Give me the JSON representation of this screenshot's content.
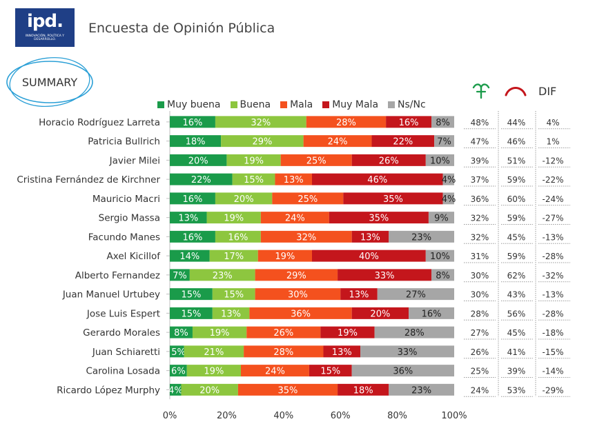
{
  "header": {
    "logo_text": "ipd.",
    "logo_tagline": "INNOVACIÓN, POLÍTICA Y DESARROLLO.",
    "title": "Encuesta de Opinión Pública",
    "summary_label": "SUMMARY"
  },
  "legend": [
    {
      "label": "Muy buena",
      "color": "#1a9b4a"
    },
    {
      "label": "Buena",
      "color": "#8dc63f"
    },
    {
      "label": "Mala",
      "color": "#f4511e"
    },
    {
      "label": "Muy Mala",
      "color": "#c4161c"
    },
    {
      "label": "Ns/Nc",
      "color": "#a6a6a6"
    }
  ],
  "table_headers": {
    "positive_icon": "green-hand-sign-icon",
    "negative_icon": "red-arc-icon",
    "dif_label": "DIF"
  },
  "chart_data": {
    "type": "bar",
    "orientation": "horizontal",
    "stacked": true,
    "categories": [
      "Horacio Rodríguez Larreta",
      "Patricia Bullrich",
      "Javier Milei",
      "Cristina Fernández de Kirchner",
      "Mauricio Macri",
      "Sergio Massa",
      "Facundo Manes",
      "Axel Kicillof",
      "Alberto Fernandez",
      "Juan Manuel Urtubey",
      "Jose Luis Espert",
      "Gerardo Morales",
      "Juan Schiaretti",
      "Carolina Losada",
      "Ricardo López Murphy"
    ],
    "series": [
      {
        "name": "Muy buena",
        "color": "#1a9b4a",
        "values": [
          16,
          18,
          20,
          22,
          16,
          13,
          16,
          14,
          7,
          15,
          15,
          8,
          5,
          6,
          4
        ]
      },
      {
        "name": "Buena",
        "color": "#8dc63f",
        "values": [
          32,
          29,
          19,
          15,
          20,
          19,
          16,
          17,
          23,
          15,
          13,
          19,
          21,
          19,
          20
        ]
      },
      {
        "name": "Mala",
        "color": "#f4511e",
        "values": [
          28,
          24,
          25,
          13,
          25,
          24,
          32,
          19,
          29,
          30,
          36,
          26,
          28,
          24,
          35
        ]
      },
      {
        "name": "Muy Mala",
        "color": "#c4161c",
        "values": [
          16,
          22,
          26,
          46,
          35,
          35,
          13,
          40,
          33,
          13,
          20,
          19,
          13,
          15,
          18
        ]
      },
      {
        "name": "Ns/Nc",
        "color": "#a6a6a6",
        "values": [
          8,
          7,
          10,
          4,
          4,
          9,
          23,
          10,
          8,
          27,
          16,
          28,
          33,
          36,
          23
        ]
      }
    ],
    "value_labels": [
      [
        "16%",
        "32%",
        "28%",
        "16%",
        "8%"
      ],
      [
        "18%",
        "29%",
        "24%",
        "22%",
        "7%"
      ],
      [
        "20%",
        "19%",
        "25%",
        "26%",
        "10%"
      ],
      [
        "22%",
        "15%",
        "13%",
        "46%",
        "4%"
      ],
      [
        "16%",
        "20%",
        "25%",
        "35%",
        "4%"
      ],
      [
        "13%",
        "19%",
        "24%",
        "35%",
        "9%"
      ],
      [
        "16%",
        "16%",
        "32%",
        "13%",
        "23%"
      ],
      [
        "14%",
        "17%",
        "19%",
        "40%",
        "10%"
      ],
      [
        "7%",
        "23%",
        "29%",
        "33%",
        "8%"
      ],
      [
        "15%",
        "15%",
        "30%",
        "13%",
        "27%"
      ],
      [
        "15%",
        "13%",
        "36%",
        "20%",
        "16%"
      ],
      [
        "8%",
        "19%",
        "26%",
        "19%",
        "28%"
      ],
      [
        "5%",
        "21%",
        "28%",
        "13%",
        "33%"
      ],
      [
        "6%",
        "19%",
        "24%",
        "15%",
        "36%"
      ],
      [
        "4%",
        "20%",
        "35%",
        "18%",
        "23%"
      ]
    ],
    "xlim": [
      0,
      100
    ],
    "x_ticks": [
      "0%",
      "20%",
      "40%",
      "60%",
      "80%",
      "100%"
    ],
    "legend_position": "top",
    "table": {
      "positive": [
        "48%",
        "47%",
        "39%",
        "37%",
        "36%",
        "32%",
        "32%",
        "31%",
        "30%",
        "30%",
        "28%",
        "27%",
        "26%",
        "25%",
        "24%"
      ],
      "negative": [
        "44%",
        "46%",
        "51%",
        "59%",
        "60%",
        "59%",
        "45%",
        "59%",
        "62%",
        "43%",
        "56%",
        "45%",
        "41%",
        "39%",
        "53%"
      ],
      "dif": [
        "4%",
        "1%",
        "-12%",
        "-22%",
        "-24%",
        "-27%",
        "-13%",
        "-28%",
        "-32%",
        "-13%",
        "-28%",
        "-18%",
        "-15%",
        "-14%",
        "-29%"
      ]
    }
  }
}
